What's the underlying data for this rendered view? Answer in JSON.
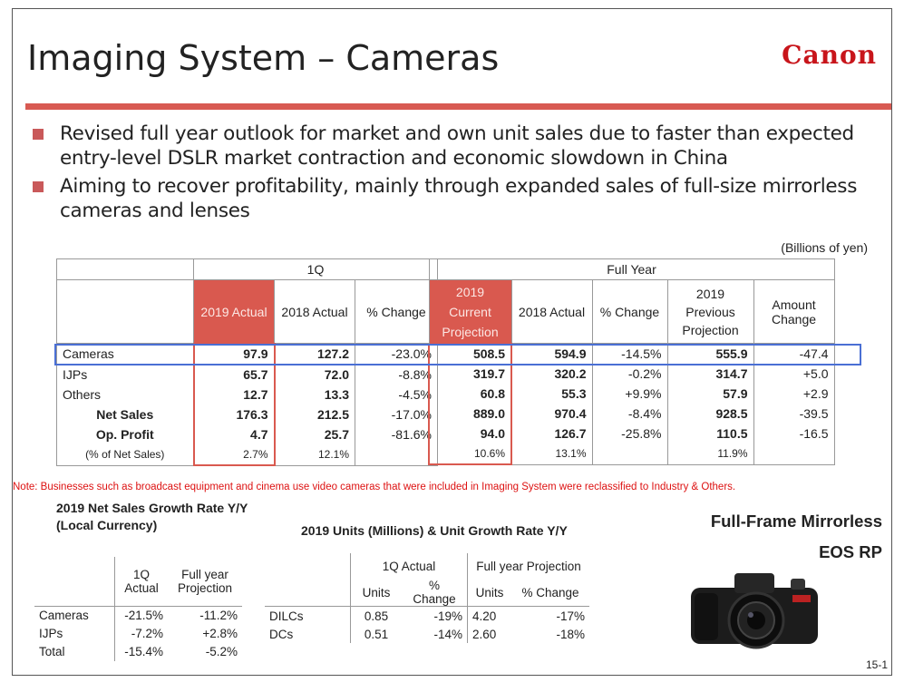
{
  "title": "Imaging System – Cameras",
  "logo": "Canon",
  "bullets": [
    "Revised full year outlook for market and own unit sales due to faster than expected entry-level DSLR market contraction and economic slowdown in China",
    "Aiming to recover profitability, mainly through expanded sales of full-size mirrorless cameras and lenses"
  ],
  "units_note": "(Billions of yen)",
  "q1": {
    "header": "1Q",
    "cols": [
      "2019 Actual",
      "2018 Actual",
      "% Change"
    ]
  },
  "fy": {
    "header": "Full Year",
    "cols": [
      "2019 Current Projection",
      "2018 Actual",
      "% Change",
      "2019 Previous Projection",
      "Amount Change"
    ]
  },
  "rows": [
    {
      "label": "Cameras",
      "q1": [
        "97.9",
        "127.2",
        "-23.0%"
      ],
      "fy": [
        "508.5",
        "594.9",
        "-14.5%",
        "555.9",
        "-47.4"
      ]
    },
    {
      "label": "IJPs",
      "q1": [
        "65.7",
        "72.0",
        "-8.8%"
      ],
      "fy": [
        "319.7",
        "320.2",
        "-0.2%",
        "314.7",
        "+5.0"
      ]
    },
    {
      "label": "Others",
      "q1": [
        "12.7",
        "13.3",
        "-4.5%"
      ],
      "fy": [
        "60.8",
        "55.3",
        "+9.9%",
        "57.9",
        "+2.9"
      ]
    },
    {
      "label": "Net Sales",
      "q1": [
        "176.3",
        "212.5",
        "-17.0%"
      ],
      "fy": [
        "889.0",
        "970.4",
        "-8.4%",
        "928.5",
        "-39.5"
      ]
    },
    {
      "label": "Op. Profit",
      "q1": [
        "4.7",
        "25.7",
        "-81.6%"
      ],
      "fy": [
        "94.0",
        "126.7",
        "-25.8%",
        "110.5",
        "-16.5"
      ]
    },
    {
      "label": "(% of Net Sales)",
      "q1": [
        "2.7%",
        "12.1%",
        ""
      ],
      "fy": [
        "10.6%",
        "13.1%",
        "",
        "11.9%",
        ""
      ]
    }
  ],
  "note": "Note: Businesses such as broadcast equipment and cinema use video cameras that were included in Imaging System were reclassified to Industry & Others.",
  "growth": {
    "title1": "2019 Net Sales Growth Rate Y/Y",
    "title2": "(Local Currency)",
    "col1": "1Q Actual",
    "col2": "Full year Projection",
    "rows": [
      {
        "label": "Cameras",
        "a": "-21.5%",
        "b": "-11.2%"
      },
      {
        "label": "IJPs",
        "a": "-7.2%",
        "b": "+2.8%"
      },
      {
        "label": "Total",
        "a": "-15.4%",
        "b": "-5.2%"
      }
    ]
  },
  "units": {
    "title": "2019 Units (Millions) & Unit Growth Rate Y/Y",
    "g1": "1Q Actual",
    "g2": "Full year Projection",
    "sub": [
      "Units",
      "% Change",
      "Units",
      "% Change"
    ],
    "rows": [
      {
        "label": "DILCs",
        "v": [
          "0.85",
          "-19%",
          "4.20",
          "-17%"
        ]
      },
      {
        "label": "DCs",
        "v": [
          "0.51",
          "-14%",
          "2.60",
          "-18%"
        ]
      }
    ]
  },
  "product": {
    "line1": "Full-Frame Mirrorless",
    "line2": "EOS RP"
  },
  "page": "15-1"
}
